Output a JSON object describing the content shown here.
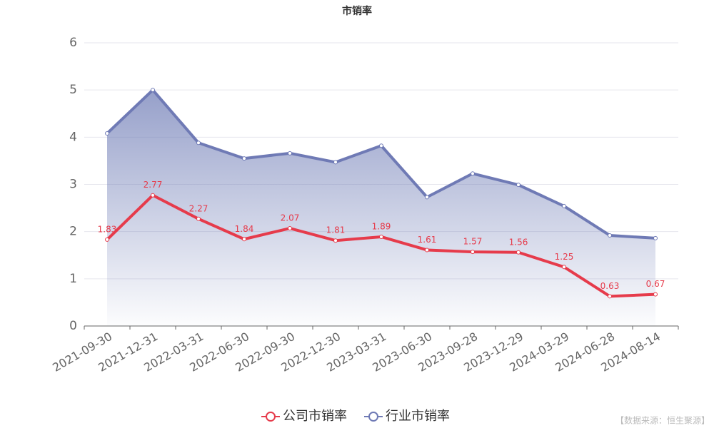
{
  "chart_data": {
    "type": "line",
    "title": "市销率",
    "categories": [
      "2021-09-30",
      "2021-12-31",
      "2022-03-31",
      "2022-06-30",
      "2022-09-30",
      "2022-12-30",
      "2023-03-31",
      "2023-06-30",
      "2023-09-28",
      "2023-12-29",
      "2024-03-29",
      "2024-06-28",
      "2024-08-14"
    ],
    "series": [
      {
        "name": "公司市销率",
        "color": "#e63b4b",
        "values": [
          1.83,
          2.77,
          2.27,
          1.84,
          2.07,
          1.81,
          1.89,
          1.61,
          1.57,
          1.56,
          1.25,
          0.63,
          0.67
        ],
        "data_labels": true
      },
      {
        "name": "行业市销率",
        "color": "#6f7ab5",
        "values": [
          4.08,
          5.0,
          3.88,
          3.55,
          3.66,
          3.47,
          3.82,
          2.73,
          3.23,
          2.99,
          2.54,
          1.92,
          1.86
        ],
        "area": true
      }
    ],
    "ylim": [
      0,
      6
    ],
    "yticks": [
      0,
      1,
      2,
      3,
      4,
      5,
      6
    ],
    "grid": true,
    "legend": "bottom",
    "source": "【数据来源：恒生聚源】"
  }
}
